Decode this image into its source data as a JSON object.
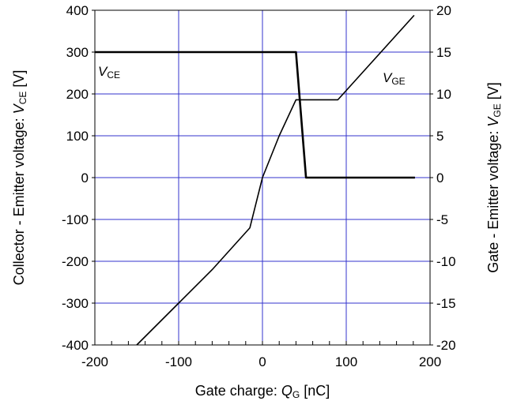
{
  "chart_data": {
    "type": "line",
    "xlabel": {
      "prefix": "Gate charge: ",
      "var": "Q",
      "sub": "G",
      "unit": " [nC]"
    },
    "ylabel_left": {
      "prefix": "Collector - Emitter voltage: ",
      "var": "V",
      "sub": "CE",
      "unit": " [V]"
    },
    "ylabel_right": {
      "prefix": "Gate - Emitter voltage: ",
      "var": "V",
      "sub": "GE",
      "unit": " [V]"
    },
    "xlim": [
      -200,
      200
    ],
    "ylim_left": [
      -400,
      400
    ],
    "ylim_right": [
      -20,
      20
    ],
    "x_ticks": [
      "-200",
      "-100",
      "0",
      "100",
      "200"
    ],
    "y_left_ticks": [
      "400",
      "300",
      "200",
      "100",
      "0",
      "-100",
      "-200",
      "-300",
      "-400"
    ],
    "y_right_ticks": [
      "20",
      "15",
      "10",
      "5",
      "0",
      "-5",
      "-10",
      "-15",
      "-20"
    ],
    "grid": true,
    "grid_color": "#3333cc",
    "series": [
      {
        "name": "VCE",
        "label_var": "V",
        "label_sub": "CE",
        "axis": "left",
        "color": "#000000",
        "points": [
          [
            -200,
            300
          ],
          [
            40,
            300
          ],
          [
            52,
            0
          ],
          [
            182,
            0
          ]
        ]
      },
      {
        "name": "VGE",
        "label_var": "V",
        "label_sub": "GE",
        "axis": "right",
        "color": "#000000",
        "points": [
          [
            -150,
            -20
          ],
          [
            -100,
            -15
          ],
          [
            -60,
            -11
          ],
          [
            -15,
            -6
          ],
          [
            0,
            0
          ],
          [
            20,
            5
          ],
          [
            40,
            9.3
          ],
          [
            90,
            9.3
          ],
          [
            181,
            19.4
          ]
        ]
      }
    ]
  }
}
